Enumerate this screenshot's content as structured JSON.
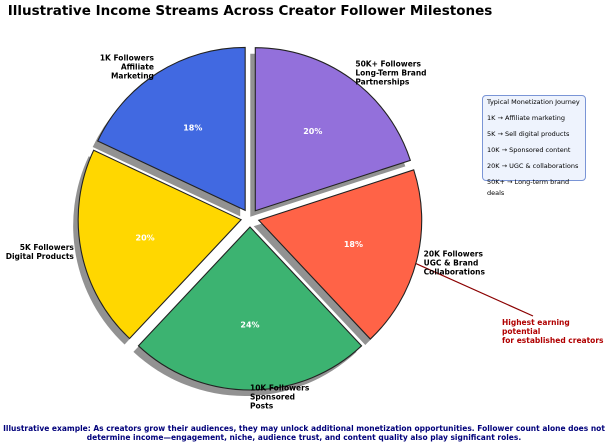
{
  "chart_data": {
    "type": "pie",
    "title": "Illustrative Income Streams Across Creator Follower Milestones",
    "categories": [
      "1K Followers\nAffiliate\nMarketing",
      "5K Followers\nDigital Products",
      "10K Followers\nSponsored\nPosts",
      "20K Followers\nUGC & Brand\nCollaborations",
      "50K+ Followers\nLong-Term Brand\nPartnerships"
    ],
    "values": [
      18,
      20,
      24,
      18,
      20
    ],
    "value_labels": [
      "18%",
      "20%",
      "24%",
      "18%",
      "20%"
    ],
    "colors": [
      "#4169e1",
      "#ffd700",
      "#3cb371",
      "#ff6347",
      "#9370db"
    ],
    "info_box": {
      "title": "Typical Monetization Journey",
      "items": [
        "1K → Affiliate marketing",
        "5K → Sell digital products",
        "10K → Sponsored content",
        "20K → UGC & collaborations",
        "50K+ → Long-term brand deals"
      ]
    },
    "annotation": "Highest earning potential\nfor established creators",
    "footnote": "Illustrative example: As creators grow their audiences, they may unlock additional monetization opportunities. Follower count alone does not determine income—engagement, niche, audience trust, and content quality also play significant roles."
  }
}
